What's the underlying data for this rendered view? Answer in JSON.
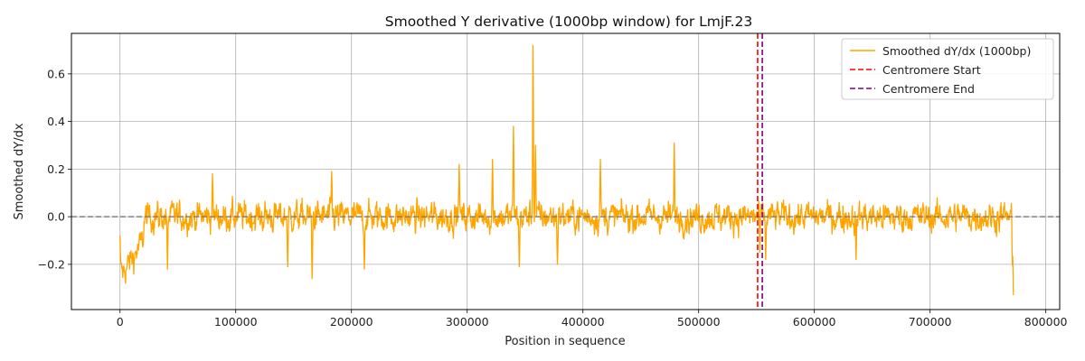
{
  "chart_data": {
    "type": "line",
    "title": "Smoothed Y derivative (1000bp window) for LmjF.23",
    "xlabel": "Position in sequence",
    "ylabel": "Smoothed dY/dx",
    "xlim": [
      -42000,
      812000
    ],
    "ylim": [
      -0.39,
      0.77
    ],
    "xticks": [
      0,
      100000,
      200000,
      300000,
      400000,
      500000,
      600000,
      700000,
      800000
    ],
    "xtick_labels": [
      "0",
      "100000",
      "200000",
      "300000",
      "400000",
      "500000",
      "600000",
      "700000",
      "800000"
    ],
    "yticks": [
      -0.2,
      0.0,
      0.2,
      0.4,
      0.6
    ],
    "ytick_labels": [
      "−0.2",
      "0.0",
      "0.2",
      "0.4",
      "0.6"
    ],
    "grid": true,
    "legend_location": "top-right",
    "series": [
      {
        "name": "Smoothed dY/dx (1000bp)",
        "color": "#ffa500",
        "style": "solid",
        "x_start": 0,
        "x_end": 772000,
        "noise_std": 0.055,
        "peaks": [
          {
            "x": 1000,
            "y": -0.2
          },
          {
            "x": 41000,
            "y": -0.22
          },
          {
            "x": 80000,
            "y": 0.18
          },
          {
            "x": 145000,
            "y": -0.21
          },
          {
            "x": 166000,
            "y": -0.26
          },
          {
            "x": 183000,
            "y": 0.19
          },
          {
            "x": 211000,
            "y": -0.22
          },
          {
            "x": 293000,
            "y": 0.22
          },
          {
            "x": 322000,
            "y": 0.24
          },
          {
            "x": 340000,
            "y": 0.38
          },
          {
            "x": 345000,
            "y": -0.21
          },
          {
            "x": 357000,
            "y": 0.72
          },
          {
            "x": 359000,
            "y": 0.3
          },
          {
            "x": 378000,
            "y": -0.2
          },
          {
            "x": 415000,
            "y": 0.24
          },
          {
            "x": 479000,
            "y": 0.31
          },
          {
            "x": 553000,
            "y": -0.15
          },
          {
            "x": 558000,
            "y": -0.18
          },
          {
            "x": 636000,
            "y": -0.18
          },
          {
            "x": 771000,
            "y": -0.2
          },
          {
            "x": 772000,
            "y": -0.33
          }
        ]
      },
      {
        "name": "Centromere Start",
        "color": "#ff0000",
        "style": "dashed",
        "x": 551000
      },
      {
        "name": "Centromere End",
        "color": "#800080",
        "style": "dashed",
        "x": 555000
      }
    ],
    "reference_line": {
      "y": 0.0,
      "color": "#808080",
      "style": "dashed"
    }
  }
}
